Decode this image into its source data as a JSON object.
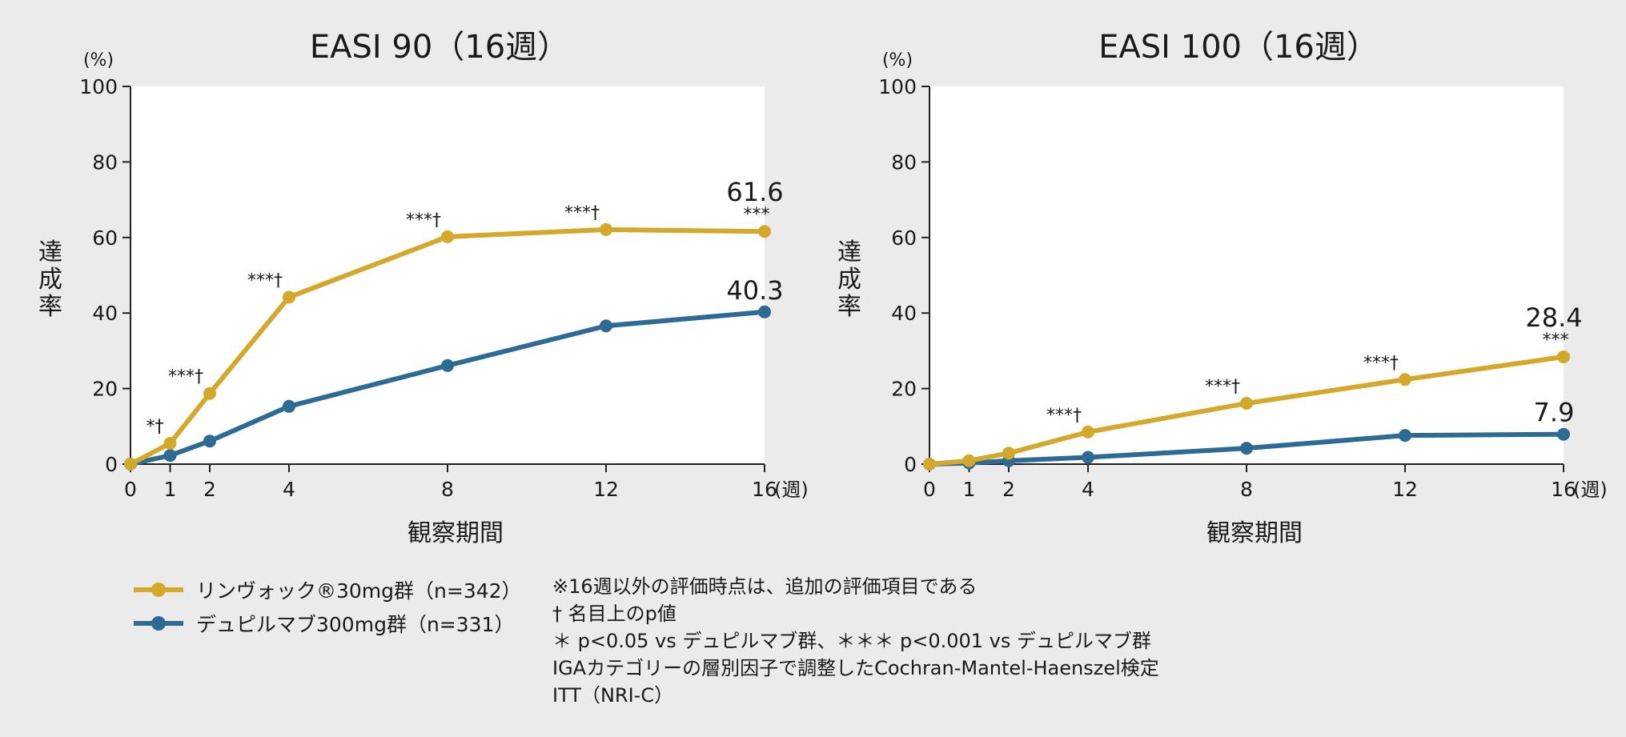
{
  "colors": {
    "background": "#ebebeb",
    "plot_background": "#ffffff",
    "upadacitinib": "#d4a82a",
    "dupilumab": "#2e6b94",
    "text": "#1a1a1a"
  },
  "legend": [
    {
      "label": "リンヴォック®30mg群（n=342）",
      "series": "upadacitinib"
    },
    {
      "label": "デュピルマブ300mg群（n=331）",
      "series": "dupilumab"
    }
  ],
  "notes": [
    "※16週以外の評価時点は、追加の評価項目である",
    "† 名目上のp値",
    "＊ p<0.05 vs デュピルマブ群、＊＊＊ p<0.001 vs デュピルマブ群",
    "IGAカテゴリーの層別因子で調整したCochran-Mantel-Haenszel検定",
    "ITT（NRI-C）"
  ],
  "chart_data": [
    {
      "type": "line",
      "title": "EASI 90（16週）",
      "ylabel": "達成率",
      "yunit": "(%)",
      "xlabel": "観察期間",
      "xunit": "(週)",
      "ylim": [
        0,
        100
      ],
      "yticks": [
        0,
        20,
        40,
        60,
        80,
        100
      ],
      "xlim": [
        0,
        16
      ],
      "xticks": [
        0,
        1,
        2,
        4,
        8,
        12,
        16
      ],
      "x": [
        0,
        1,
        2,
        4,
        8,
        12,
        16
      ],
      "series": [
        {
          "name": "リンヴォック®30mg群（n=342）",
          "color_key": "upadacitinib",
          "values": [
            0,
            5.5,
            18.7,
            44.2,
            60.2,
            62.1,
            61.6
          ],
          "annotations": [
            "",
            "*†",
            "***†",
            "***†",
            "***†",
            "***†",
            "***"
          ],
          "end_label": "61.6"
        },
        {
          "name": "デュピルマブ300mg群（n=331）",
          "color_key": "dupilumab",
          "values": [
            0,
            2.3,
            6.1,
            15.3,
            26.1,
            36.6,
            40.3
          ],
          "annotations": [
            "",
            "",
            "",
            "",
            "",
            "",
            ""
          ],
          "end_label": "40.3"
        }
      ]
    },
    {
      "type": "line",
      "title": "EASI 100（16週）",
      "ylabel": "達成率",
      "yunit": "(%)",
      "xlabel": "観察期間",
      "xunit": "(週)",
      "ylim": [
        0,
        100
      ],
      "yticks": [
        0,
        20,
        40,
        60,
        80,
        100
      ],
      "xlim": [
        0,
        16
      ],
      "xticks": [
        0,
        1,
        2,
        4,
        8,
        12,
        16
      ],
      "x": [
        0,
        1,
        2,
        4,
        8,
        12,
        16
      ],
      "series": [
        {
          "name": "リンヴォック®30mg群（n=342）",
          "color_key": "upadacitinib",
          "values": [
            0,
            0.9,
            2.9,
            8.5,
            16.1,
            22.4,
            28.4
          ],
          "annotations": [
            "",
            "",
            "",
            "***†",
            "***†",
            "***†",
            "***"
          ],
          "end_label": "28.4"
        },
        {
          "name": "デュピルマブ300mg群（n=331）",
          "color_key": "dupilumab",
          "values": [
            0,
            0.3,
            0.9,
            1.8,
            4.2,
            7.6,
            7.9
          ],
          "annotations": [
            "",
            "",
            "",
            "",
            "",
            "",
            ""
          ],
          "end_label": "7.9"
        }
      ]
    }
  ]
}
